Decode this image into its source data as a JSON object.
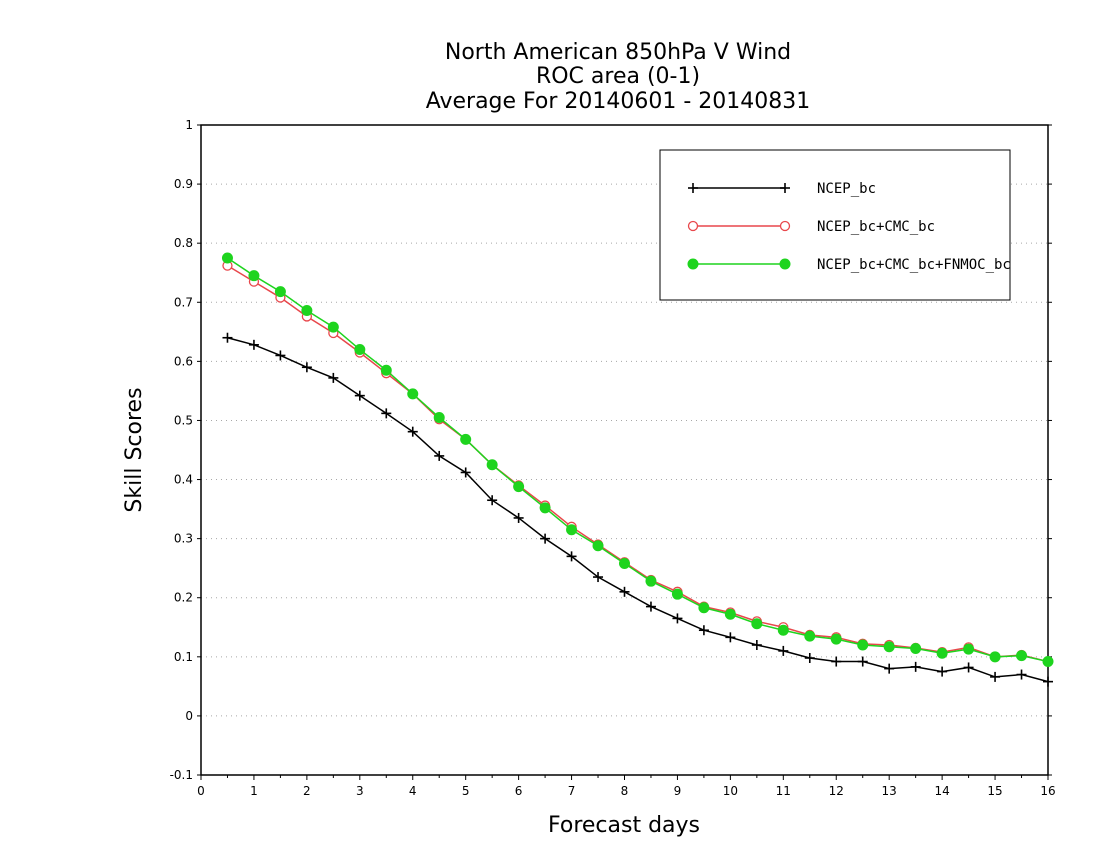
{
  "chart_data": {
    "type": "line",
    "title": [
      "North American 850hPa V Wind",
      "ROC area (0-1)",
      "Average For 20140601 - 20140831"
    ],
    "xlabel": "Forecast days",
    "ylabel": "Skill Scores",
    "xlim": [
      0,
      16
    ],
    "ylim": [
      -0.1,
      1
    ],
    "xticks": [
      0,
      1,
      2,
      3,
      4,
      5,
      6,
      7,
      8,
      9,
      10,
      11,
      12,
      13,
      14,
      15,
      16
    ],
    "yticks": [
      -0.1,
      0,
      0.1,
      0.2,
      0.3,
      0.4,
      0.5,
      0.6,
      0.7,
      0.8,
      0.9,
      1
    ],
    "ytick_labels": [
      "-0.1",
      "0",
      "0.1",
      "0.2",
      "0.3",
      "0.4",
      "0.5",
      "0.6",
      "0.7",
      "0.8",
      "0.9",
      "1"
    ],
    "grid": "horizontal dotted",
    "legend_position": "top-right",
    "x": [
      0.5,
      1,
      1.5,
      2,
      2.5,
      3,
      3.5,
      4,
      4.5,
      5,
      5.5,
      6,
      6.5,
      7,
      7.5,
      8,
      8.5,
      9,
      9.5,
      10,
      10.5,
      11,
      11.5,
      12,
      12.5,
      13,
      13.5,
      14,
      14.5,
      15,
      15.5,
      16
    ],
    "series": [
      {
        "name": "NCEP_bc",
        "color": "#000000",
        "marker": "plus",
        "values": [
          0.64,
          0.628,
          0.61,
          0.59,
          0.572,
          0.542,
          0.512,
          0.481,
          0.44,
          0.412,
          0.365,
          0.335,
          0.3,
          0.27,
          0.235,
          0.21,
          0.185,
          0.165,
          0.145,
          0.133,
          0.12,
          0.11,
          0.098,
          0.092,
          0.092,
          0.08,
          0.083,
          0.075,
          0.082,
          0.066,
          0.07,
          0.058
        ]
      },
      {
        "name": "NCEP_bc+CMC_bc",
        "color": "#e8474b",
        "marker": "open-circle",
        "values": [
          0.762,
          0.735,
          0.708,
          0.676,
          0.648,
          0.615,
          0.58,
          0.545,
          0.502,
          0.468,
          0.425,
          0.39,
          0.356,
          0.32,
          0.29,
          0.26,
          0.23,
          0.21,
          0.185,
          0.175,
          0.16,
          0.15,
          0.137,
          0.133,
          0.122,
          0.12,
          0.115,
          0.108,
          0.116,
          0.1,
          0.103,
          0.092
        ]
      },
      {
        "name": "NCEP_bc+CMC_bc+FNMOC_bc",
        "color": "#1ed41e",
        "marker": "filled-circle",
        "values": [
          0.775,
          0.745,
          0.718,
          0.686,
          0.658,
          0.62,
          0.585,
          0.545,
          0.505,
          0.468,
          0.425,
          0.388,
          0.352,
          0.315,
          0.288,
          0.258,
          0.228,
          0.206,
          0.183,
          0.172,
          0.156,
          0.145,
          0.135,
          0.13,
          0.12,
          0.117,
          0.114,
          0.106,
          0.113,
          0.1,
          0.102,
          0.092
        ]
      }
    ]
  }
}
